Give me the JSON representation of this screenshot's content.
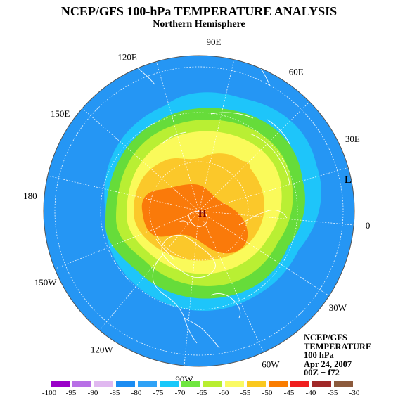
{
  "title": "NCEP/GFS 100-hPa TEMPERATURE ANALYSIS",
  "subtitle": "Northern Hemisphere",
  "longitude_labels": [
    {
      "text": "90E",
      "lon": 90
    },
    {
      "text": "60E",
      "lon": 60
    },
    {
      "text": "30E",
      "lon": 30
    },
    {
      "text": "0",
      "lon": 0
    },
    {
      "text": "30W",
      "lon": -30
    },
    {
      "text": "60W",
      "lon": -60
    },
    {
      "text": "90W",
      "lon": -90
    },
    {
      "text": "120W",
      "lon": -120
    },
    {
      "text": "150W",
      "lon": -150
    },
    {
      "text": "180",
      "lon": 180
    },
    {
      "text": "150E",
      "lon": 150
    },
    {
      "text": "120E",
      "lon": 120
    }
  ],
  "markers": [
    {
      "text": "H",
      "name": "high-pressure-marker",
      "color": "#7a0000"
    },
    {
      "text": "L",
      "name": "low-pressure-marker",
      "color": "#000000"
    }
  ],
  "info_box": [
    "NCEP/GFS",
    "TEMPERATURE",
    "100 hPa",
    "Apr 24, 2007",
    "00Z + f72"
  ],
  "colorbar": {
    "labels": [
      "-100",
      "-95",
      "-90",
      "-85",
      "-80",
      "-75",
      "-70",
      "-65",
      "-60",
      "-55",
      "-50",
      "-45",
      "-40",
      "-35",
      "-30"
    ],
    "colors": [
      "#9a00c8",
      "#b870e6",
      "#e0b8f0",
      "#1b8cf2",
      "#2fa2f6",
      "#18c8fa",
      "#70e640",
      "#b8ee30",
      "#fafa64",
      "#fac81e",
      "#fa7d00",
      "#f01e1e",
      "#a02828",
      "#8c5a3c"
    ]
  },
  "field_colors": {
    "outer": "#2596f4",
    "band_75": "#1ec5fa",
    "band_70": "#66dc3a",
    "band_65": "#b9ef33",
    "band_60": "#fafa5a",
    "band_55": "#fbc82a",
    "band_50": "#fa7a0a"
  }
}
